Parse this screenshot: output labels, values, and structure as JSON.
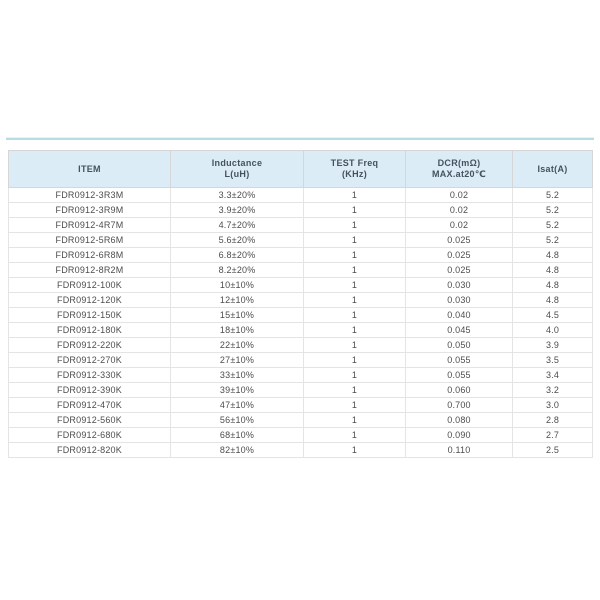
{
  "colors": {
    "page_bg": "#ffffff",
    "divider": "#b7dce4",
    "header_bg": "#dcecf6",
    "header_text": "#44525f",
    "body_text": "#4d4d4d",
    "border": "#d6d6d6",
    "border_light": "#e4e4e4"
  },
  "table": {
    "columns": [
      {
        "key": "item",
        "lines": [
          "ITEM"
        ]
      },
      {
        "key": "inductance",
        "lines": [
          "Inductance",
          "L(uH)"
        ]
      },
      {
        "key": "test-freq",
        "lines": [
          "TEST Freq",
          "(KHz)"
        ]
      },
      {
        "key": "dcr",
        "lines": [
          "DCR(mΩ)",
          "MAX.at20℃"
        ]
      },
      {
        "key": "isat",
        "lines": [
          "Isat(A)"
        ]
      }
    ],
    "rows": [
      [
        "FDR0912-3R3M",
        "3.3±20%",
        "1",
        "0.02",
        "5.2"
      ],
      [
        "FDR0912-3R9M",
        "3.9±20%",
        "1",
        "0.02",
        "5.2"
      ],
      [
        "FDR0912-4R7M",
        "4.7±20%",
        "1",
        "0.02",
        "5.2"
      ],
      [
        "FDR0912-5R6M",
        "5.6±20%",
        "1",
        "0.025",
        "5.2"
      ],
      [
        "FDR0912-6R8M",
        "6.8±20%",
        "1",
        "0.025",
        "4.8"
      ],
      [
        "FDR0912-8R2M",
        "8.2±20%",
        "1",
        "0.025",
        "4.8"
      ],
      [
        "FDR0912-100K",
        "10±10%",
        "1",
        "0.030",
        "4.8"
      ],
      [
        "FDR0912-120K",
        "12±10%",
        "1",
        "0.030",
        "4.8"
      ],
      [
        "FDR0912-150K",
        "15±10%",
        "1",
        "0.040",
        "4.5"
      ],
      [
        "FDR0912-180K",
        "18±10%",
        "1",
        "0.045",
        "4.0"
      ],
      [
        "FDR0912-220K",
        "22±10%",
        "1",
        "0.050",
        "3.9"
      ],
      [
        "FDR0912-270K",
        "27±10%",
        "1",
        "0.055",
        "3.5"
      ],
      [
        "FDR0912-330K",
        "33±10%",
        "1",
        "0.055",
        "3.4"
      ],
      [
        "FDR0912-390K",
        "39±10%",
        "1",
        "0.060",
        "3.2"
      ],
      [
        "FDR0912-470K",
        "47±10%",
        "1",
        "0.700",
        "3.0"
      ],
      [
        "FDR0912-560K",
        "56±10%",
        "1",
        "0.080",
        "2.8"
      ],
      [
        "FDR0912-680K",
        "68±10%",
        "1",
        "0.090",
        "2.7"
      ],
      [
        "FDR0912-820K",
        "82±10%",
        "1",
        "0.110",
        "2.5"
      ]
    ]
  }
}
